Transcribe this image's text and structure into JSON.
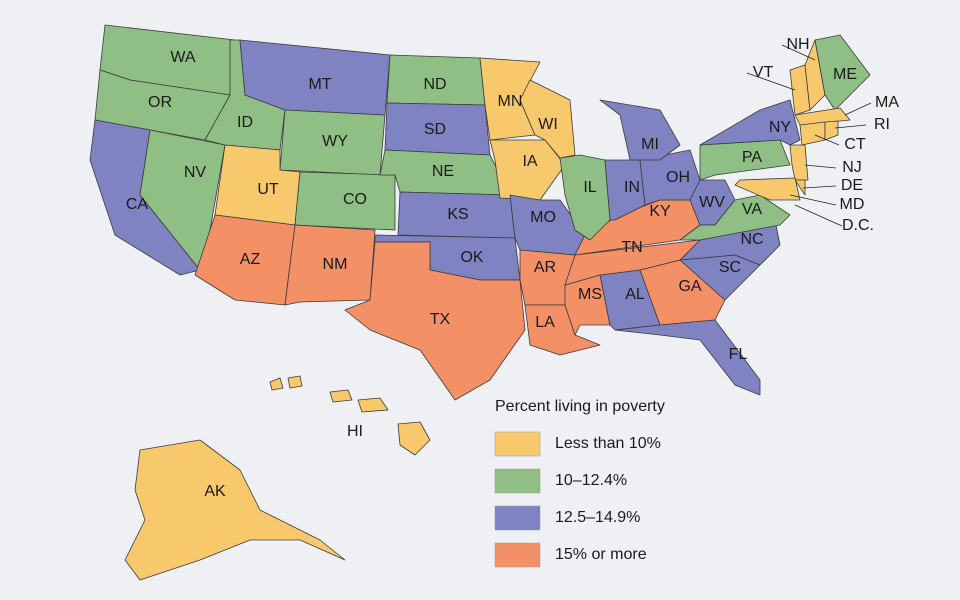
{
  "legend": {
    "title": "Percent living in poverty",
    "items": [
      {
        "label": "Less than 10%",
        "color": "#f7c96c"
      },
      {
        "label": "10–12.4%",
        "color": "#8fbf84"
      },
      {
        "label": "12.5–14.9%",
        "color": "#7f83c2"
      },
      {
        "label": "15% or more",
        "color": "#f49066"
      }
    ]
  },
  "states": [
    {
      "label": "WA",
      "group": 1
    },
    {
      "label": "OR",
      "group": 1
    },
    {
      "label": "CA",
      "group": 2
    },
    {
      "label": "NV",
      "group": 1
    },
    {
      "label": "ID",
      "group": 1
    },
    {
      "label": "MT",
      "group": 2
    },
    {
      "label": "WY",
      "group": 1
    },
    {
      "label": "UT",
      "group": 0
    },
    {
      "label": "CO",
      "group": 1
    },
    {
      "label": "AZ",
      "group": 3
    },
    {
      "label": "NM",
      "group": 3
    },
    {
      "label": "ND",
      "group": 1
    },
    {
      "label": "SD",
      "group": 2
    },
    {
      "label": "NE",
      "group": 1
    },
    {
      "label": "KS",
      "group": 2
    },
    {
      "label": "OK",
      "group": 2
    },
    {
      "label": "TX",
      "group": 3
    },
    {
      "label": "MN",
      "group": 0
    },
    {
      "label": "IA",
      "group": 0
    },
    {
      "label": "WI",
      "group": 0
    },
    {
      "label": "MO",
      "group": 2
    },
    {
      "label": "AR",
      "group": 3
    },
    {
      "label": "LA",
      "group": 3
    },
    {
      "label": "MS",
      "group": 3
    },
    {
      "label": "AL",
      "group": 2
    },
    {
      "label": "GA",
      "group": 3
    },
    {
      "label": "FL",
      "group": 2
    },
    {
      "label": "SC",
      "group": 2
    },
    {
      "label": "NC",
      "group": 2
    },
    {
      "label": "TN",
      "group": 3
    },
    {
      "label": "KY",
      "group": 3
    },
    {
      "label": "IL",
      "group": 1
    },
    {
      "label": "IN",
      "group": 2
    },
    {
      "label": "OH",
      "group": 2
    },
    {
      "label": "MI",
      "group": 2
    },
    {
      "label": "WV",
      "group": 2
    },
    {
      "label": "VA",
      "group": 1
    },
    {
      "label": "PA",
      "group": 1
    },
    {
      "label": "NY",
      "group": 2
    },
    {
      "label": "VT",
      "group": 0
    },
    {
      "label": "NH",
      "group": 0
    },
    {
      "label": "ME",
      "group": 1
    },
    {
      "label": "MA",
      "group": 0
    },
    {
      "label": "CT",
      "group": 0
    },
    {
      "label": "RI",
      "group": 0
    },
    {
      "label": "NJ",
      "group": 0
    },
    {
      "label": "DE",
      "group": 0
    },
    {
      "label": "MD",
      "group": 0
    },
    {
      "label": "D.C."
    },
    {
      "label": "HI",
      "group": 0
    },
    {
      "label": "AK",
      "group": 0
    }
  ]
}
